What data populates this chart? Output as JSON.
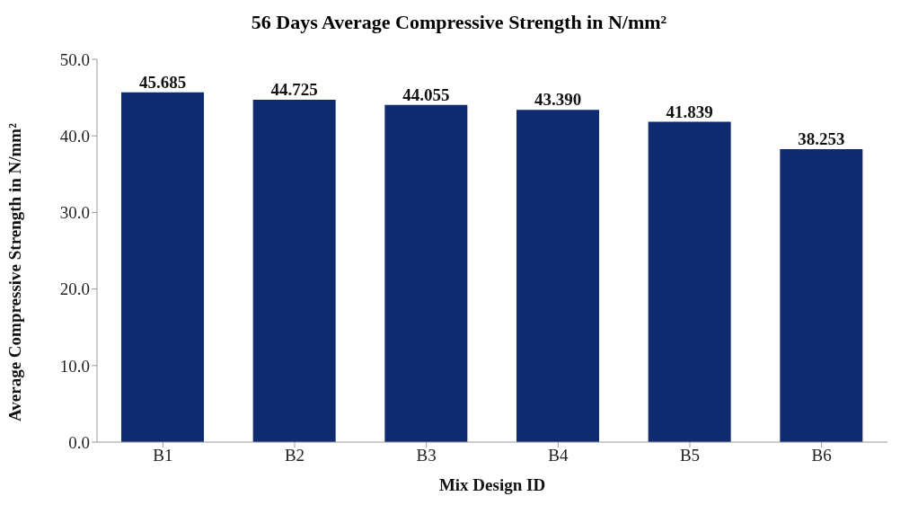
{
  "chart_data": {
    "type": "bar",
    "title": "56 Days Average Compressive Strength in N/mm²",
    "xlabel": "Mix Design ID",
    "ylabel": "Average Compressive Strength in N/mm²",
    "categories": [
      "B1",
      "B2",
      "B3",
      "B4",
      "B5",
      "B6"
    ],
    "values": [
      45.685,
      44.725,
      44.055,
      43.39,
      41.839,
      38.253
    ],
    "value_labels": [
      "45.685",
      "44.725",
      "44.055",
      "43.390",
      "41.839",
      "38.253"
    ],
    "color": "#0f2a6e",
    "ylim": [
      0,
      50
    ],
    "yticks": [
      {
        "value": 0,
        "label": "0.0"
      },
      {
        "value": 10,
        "label": "10.0"
      },
      {
        "value": 20,
        "label": "20.0"
      },
      {
        "value": 30,
        "label": "30.0"
      },
      {
        "value": 40,
        "label": "40.0"
      },
      {
        "value": 50,
        "label": "50.0"
      }
    ]
  }
}
